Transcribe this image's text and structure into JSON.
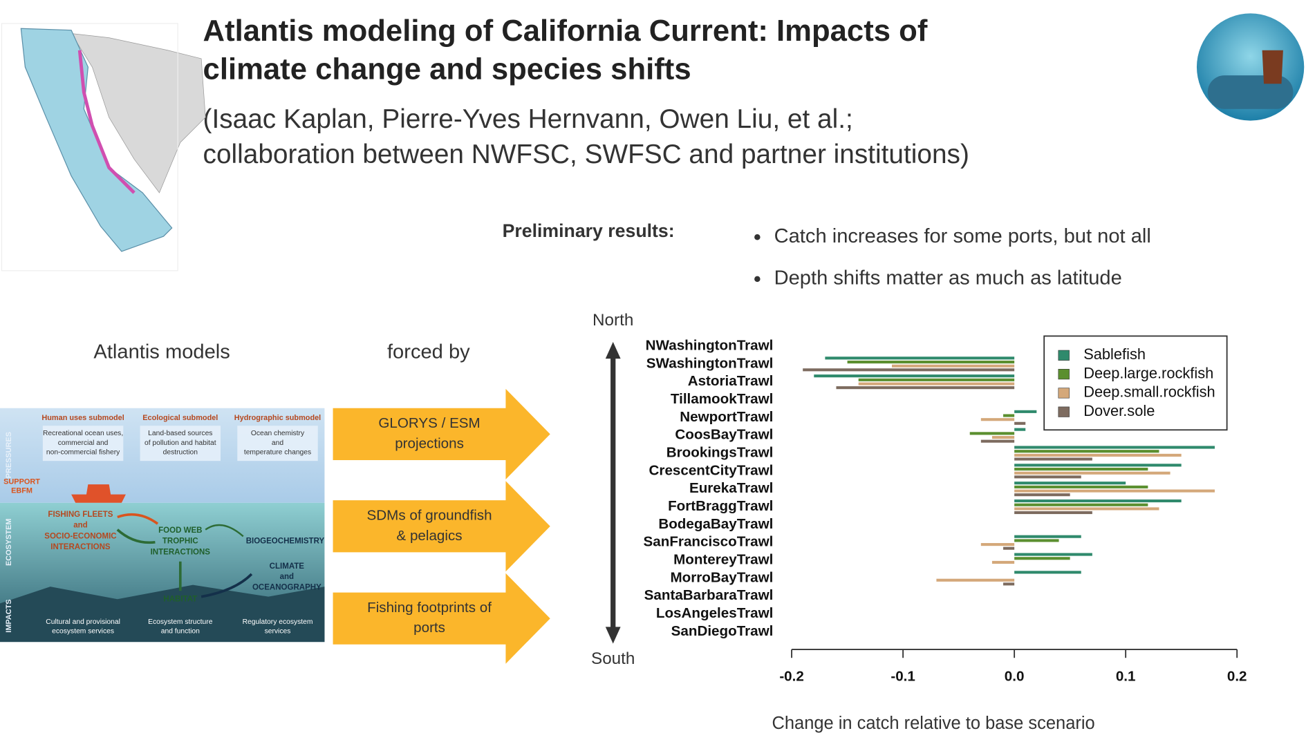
{
  "header": {
    "title_lines": [
      "Atlantis modeling of California Current: Impacts of",
      "climate change and species shifts"
    ],
    "author_lines": [
      "(Isaac Kaplan, Pierre-Yves Hernvann, Owen Liu, et al.;",
      "collaboration between NWFSC, SWFSC and partner institutions)"
    ]
  },
  "preliminary": {
    "label": "Preliminary results:",
    "bullets": [
      "Catch increases for some ports, but not all",
      "Depth shifts matter as much as latitude"
    ]
  },
  "diagram": {
    "left_heading": "Atlantis models",
    "right_heading": "forced by",
    "columns": [
      "Human uses submodel",
      "Ecological submodel",
      "Hydrographic submodel"
    ],
    "pressures": [
      [
        "Recreational ocean uses,",
        "commercial and",
        "non-commercial fishery"
      ],
      [
        "Land-based sources",
        "of pollution and habitat",
        "destruction"
      ],
      [
        "Ocean chemistry",
        "and",
        "temperature changes"
      ]
    ],
    "side_labels": [
      "PRESSURES",
      "ECOSYSTEM",
      "IMPACTS"
    ],
    "support": [
      "SUPPORT",
      "EBFM"
    ],
    "ecosystem": {
      "fleets": [
        "FISHING FLEETS",
        "and",
        "SOCIO-ECONOMIC",
        "INTERACTIONS"
      ],
      "foodweb": [
        "FOOD WEB",
        "TROPHIC",
        "INTERACTIONS"
      ],
      "biogeo": "BIOGEOCHEMISTRY",
      "climate": [
        "CLIMATE",
        "and",
        "OCEANOGRAPHY"
      ],
      "habitat": "HABITAT"
    },
    "impacts": [
      [
        "Cultural and provisional",
        "ecosystem services"
      ],
      [
        "Ecosystem structure",
        "and function"
      ],
      [
        "Regulatory ecosystem",
        "services"
      ]
    ],
    "forcings": [
      [
        "GLORYS / ESM",
        "projections"
      ],
      [
        "SDMs of groundfish",
        "& pelagics"
      ],
      [
        "Fishing footprints of",
        "ports"
      ]
    ]
  },
  "chart_data": {
    "type": "bar",
    "orientation": "horizontal",
    "north_label": "North",
    "south_label": "South",
    "x_label": "Change in catch relative to base scenario",
    "categories": [
      "NWashingtonTrawl",
      "SWashingtonTrawl",
      "AstoriaTrawl",
      "TillamookTrawl",
      "NewportTrawl",
      "CoosBayTrawl",
      "BrookingsTrawl",
      "CrescentCityTrawl",
      "EurekaTrawl",
      "FortBraggTrawl",
      "BodegaBayTrawl",
      "SanFranciscoTrawl",
      "MontereyTrawl",
      "MorroBayTrawl",
      "SantaBarbaraTrawl",
      "LosAngelesTrawl",
      "SanDiegoTrawl"
    ],
    "series": [
      {
        "name": "Sablefish",
        "color": "#2f8a6c",
        "values": [
          0,
          -0.17,
          -0.18,
          0,
          0.02,
          0.01,
          0.18,
          0.15,
          0.1,
          0.15,
          0,
          0.06,
          0.07,
          0.06,
          0,
          0,
          0
        ]
      },
      {
        "name": "Deep.large.rockfish",
        "color": "#5b8f2f",
        "values": [
          0,
          -0.15,
          -0.14,
          0,
          -0.01,
          -0.04,
          0.13,
          0.12,
          0.12,
          0.12,
          0,
          0.04,
          0.05,
          0,
          0,
          0,
          0
        ]
      },
      {
        "name": "Deep.small.rockfish",
        "color": "#d4a87a",
        "values": [
          0,
          -0.11,
          -0.14,
          0,
          -0.03,
          -0.02,
          0.15,
          0.14,
          0.18,
          0.13,
          0,
          -0.03,
          -0.02,
          -0.07,
          0,
          0,
          0
        ]
      },
      {
        "name": "Dover.sole",
        "color": "#7d6b5f",
        "values": [
          0,
          -0.19,
          -0.16,
          0,
          0.01,
          -0.03,
          0.07,
          0.06,
          0.05,
          0.07,
          0,
          -0.01,
          0,
          -0.01,
          0,
          0,
          0
        ]
      }
    ],
    "xlim": [
      -0.2,
      0.2
    ],
    "xticks": [
      -0.2,
      -0.1,
      {
        "value": 0,
        "label": "0.0"
      },
      0.1,
      0.2
    ],
    "legend": "top-right"
  }
}
